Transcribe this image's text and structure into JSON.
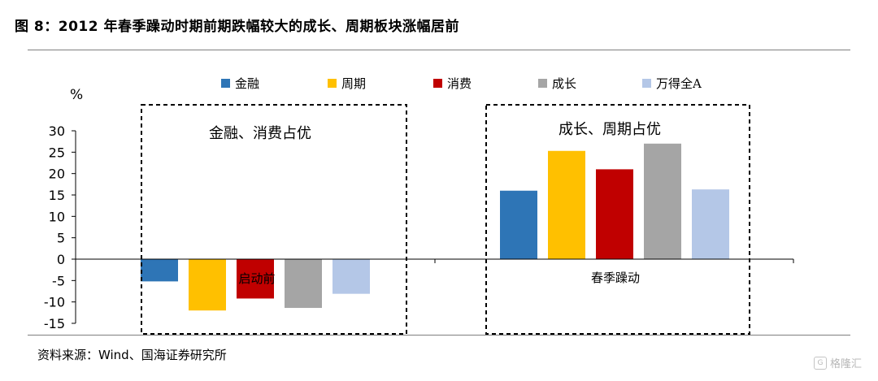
{
  "title": "图 8：2012 年春季躁动时期前期跌幅较大的成长、周期板块涨幅居前",
  "source": "资料来源：Wind、国海证券研究所",
  "watermark": "格隆汇",
  "colors": {
    "金融": "#2e75b6",
    "周期": "#ffc000",
    "消费": "#c00000",
    "成长": "#a5a5a5",
    "万得全A": "#b4c7e7"
  },
  "chart_data": {
    "type": "bar",
    "ylabel": "%",
    "ylim": [
      -15,
      30
    ],
    "yticks": [
      30,
      25,
      20,
      15,
      10,
      5,
      0,
      -5,
      -10,
      -15
    ],
    "categories": [
      "启动前",
      "春季躁动"
    ],
    "series": [
      {
        "name": "金融",
        "values": [
          -5.2,
          16.0
        ]
      },
      {
        "name": "周期",
        "values": [
          -12.0,
          25.3
        ]
      },
      {
        "name": "消费",
        "values": [
          -9.2,
          21.0
        ]
      },
      {
        "name": "成长",
        "values": [
          -11.4,
          27.0
        ]
      },
      {
        "name": "万得全A",
        "values": [
          -8.1,
          16.3
        ]
      }
    ],
    "legend_position": "top",
    "annotations": [
      "金融、消费占优",
      "成长、周期占优"
    ],
    "grid": false
  }
}
